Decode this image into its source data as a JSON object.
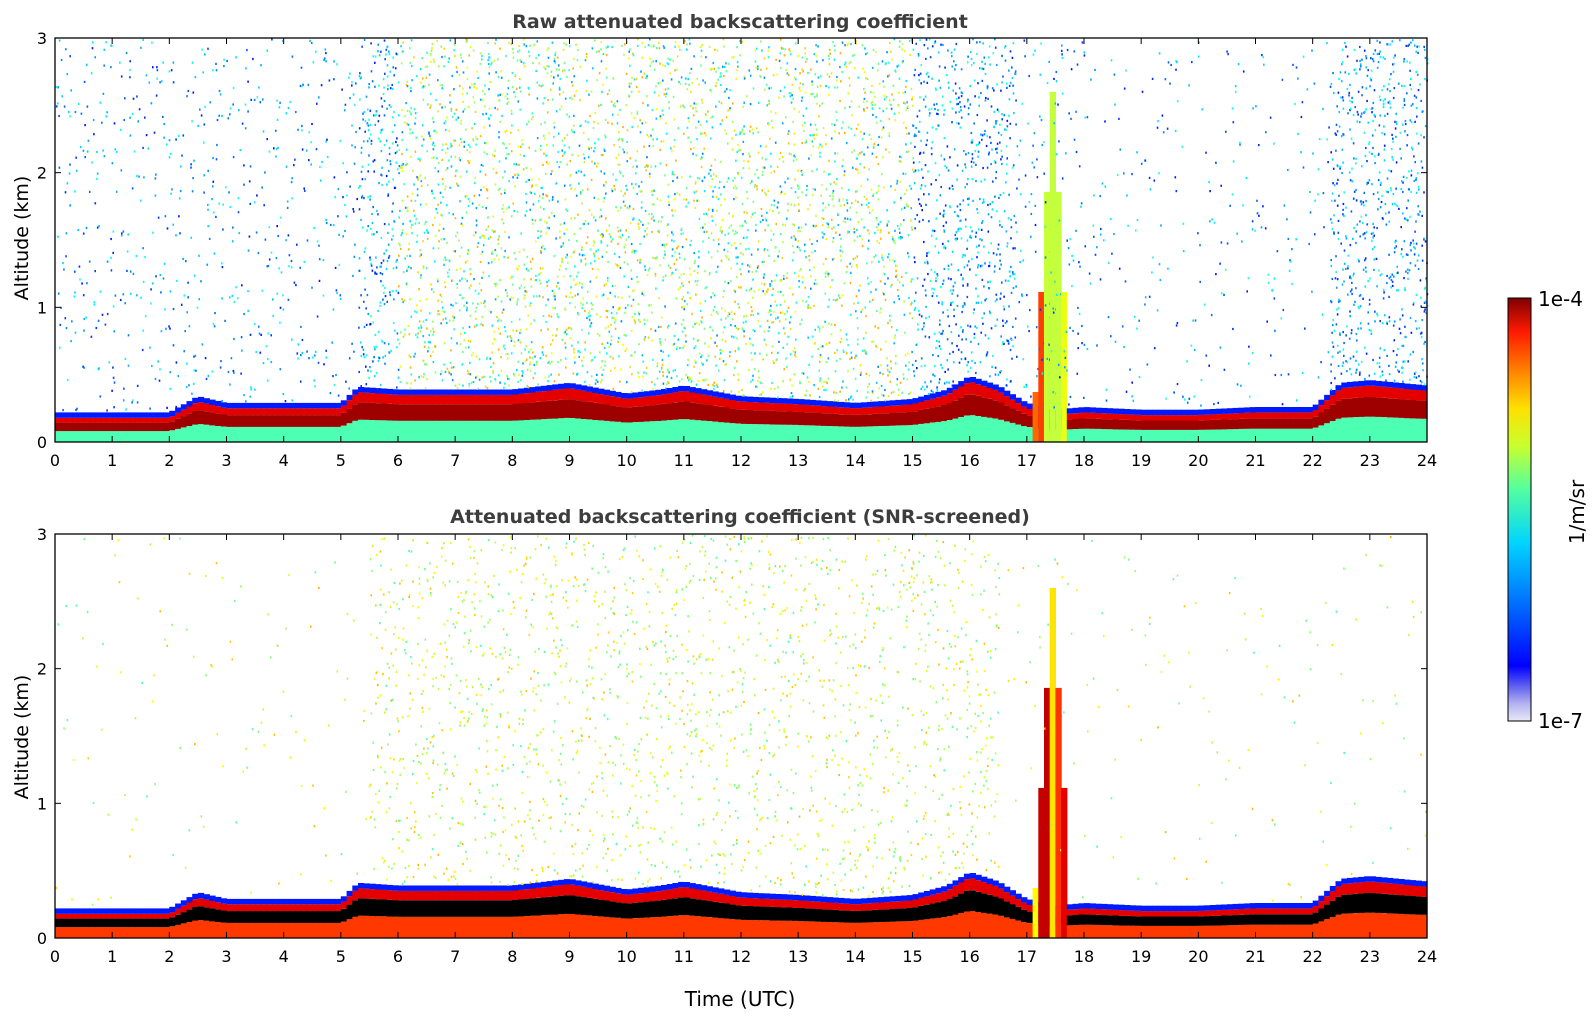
{
  "figure": {
    "xlabel": "Time (UTC)",
    "colorbar": {
      "label": "1/m/sr",
      "min_label": "1e-7",
      "max_label": "1e-4",
      "log_scale": true,
      "range": [
        1e-07,
        0.0001
      ],
      "colormap": "jet"
    }
  },
  "chart_data": [
    {
      "type": "heatmap",
      "title": "Raw attenuated backscattering coefficient",
      "xlabel": "",
      "ylabel": "Altitude (km)",
      "xlim": [
        0,
        24
      ],
      "ylim": [
        0,
        3
      ],
      "xticks": [
        0,
        1,
        2,
        3,
        4,
        5,
        6,
        7,
        8,
        9,
        10,
        11,
        12,
        13,
        14,
        15,
        16,
        17,
        18,
        19,
        20,
        21,
        22,
        23,
        24
      ],
      "yticks": [
        0,
        1,
        2,
        3
      ],
      "boundary_layer_top_km": {
        "x": [
          0,
          1,
          2,
          2.5,
          3,
          4,
          5,
          5.3,
          6,
          7,
          8,
          9,
          10,
          10.6,
          11,
          12,
          13,
          14,
          15,
          15.6,
          16,
          16.5,
          17,
          17.5,
          18,
          19,
          20,
          21,
          22,
          22.5,
          23,
          24
        ],
        "y": [
          0.18,
          0.18,
          0.18,
          0.3,
          0.25,
          0.25,
          0.25,
          0.37,
          0.35,
          0.35,
          0.35,
          0.4,
          0.32,
          0.35,
          0.38,
          0.3,
          0.28,
          0.25,
          0.28,
          0.35,
          0.45,
          0.38,
          0.25,
          0.2,
          0.22,
          0.2,
          0.2,
          0.22,
          0.22,
          0.4,
          0.42,
          0.38
        ]
      },
      "notes": "Dense aerosol layer ~0-0.45 km; sparse noisy signal aloft; cloud/plume near 17-17.6 UTC up to ~2.8 km"
    },
    {
      "type": "heatmap",
      "title": "Attenuated backscattering coefficient (SNR-screened)",
      "xlabel": "Time (UTC)",
      "ylabel": "Altitude (km)",
      "xlim": [
        0,
        24
      ],
      "ylim": [
        0,
        3
      ],
      "xticks": [
        0,
        1,
        2,
        3,
        4,
        5,
        6,
        7,
        8,
        9,
        10,
        11,
        12,
        13,
        14,
        15,
        16,
        17,
        18,
        19,
        20,
        21,
        22,
        23,
        24
      ],
      "yticks": [
        0,
        1,
        2,
        3
      ],
      "boundary_layer_top_km": {
        "x": [
          0,
          1,
          2,
          2.5,
          3,
          4,
          5,
          5.3,
          6,
          7,
          8,
          9,
          10,
          10.6,
          11,
          12,
          13,
          14,
          15,
          15.6,
          16,
          16.5,
          17,
          17.5,
          18,
          19,
          20,
          21,
          22,
          22.5,
          23,
          24
        ],
        "y": [
          0.18,
          0.18,
          0.18,
          0.3,
          0.25,
          0.25,
          0.25,
          0.37,
          0.35,
          0.35,
          0.35,
          0.4,
          0.32,
          0.35,
          0.38,
          0.3,
          0.28,
          0.25,
          0.28,
          0.35,
          0.45,
          0.38,
          0.25,
          0.2,
          0.22,
          0.2,
          0.2,
          0.22,
          0.22,
          0.4,
          0.42,
          0.38
        ]
      },
      "notes": "Low-SNR pixels removed; aloft signal retained mainly 6-16 UTC"
    }
  ]
}
